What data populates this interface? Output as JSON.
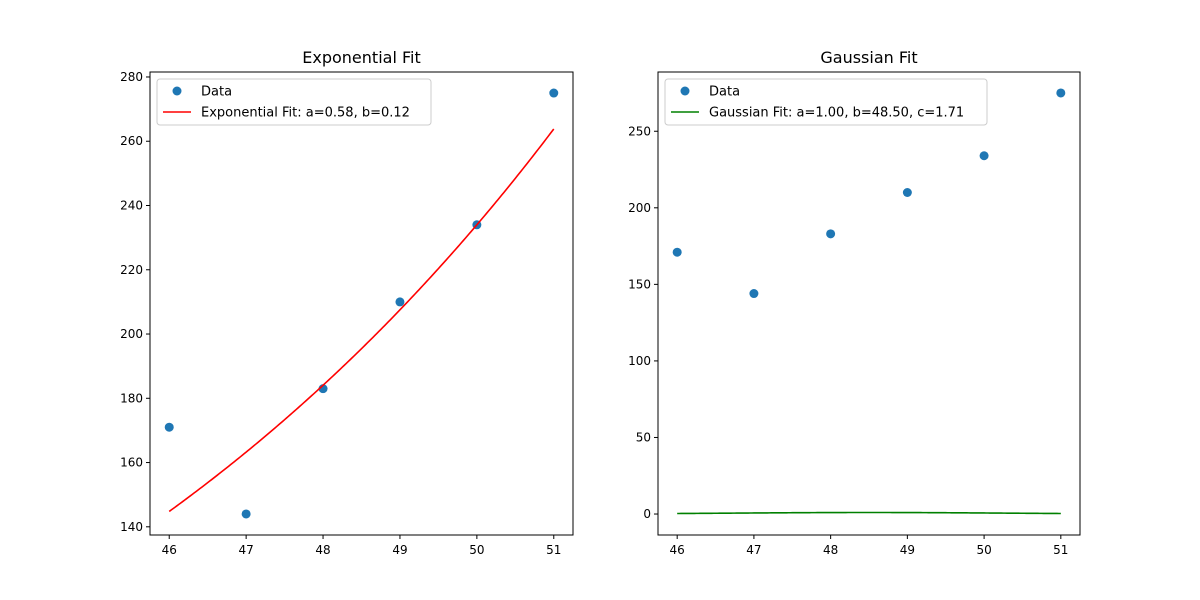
{
  "chart_data": [
    {
      "type": "scatter",
      "title": "Exponential Fit",
      "xlabel": "",
      "ylabel": "",
      "xlim": [
        45.75,
        51.25
      ],
      "ylim": [
        137.45,
        281.55
      ],
      "xticks": [
        46,
        47,
        48,
        49,
        50,
        51
      ],
      "yticks": [
        140,
        160,
        180,
        200,
        220,
        240,
        260,
        280
      ],
      "grid": false,
      "legend_position": "top-left",
      "series": [
        {
          "name": "Data",
          "kind": "scatter",
          "color": "#1f77b4",
          "x": [
            46,
            47,
            48,
            49,
            50,
            51
          ],
          "y": [
            171,
            144,
            183,
            210,
            234,
            275
          ]
        },
        {
          "name": "Exponential Fit: a=0.58, b=0.12",
          "kind": "line",
          "color": "#ff0000",
          "model": "exponential",
          "a": 0.58,
          "b": 0.12,
          "x_range": [
            46,
            51
          ]
        }
      ]
    },
    {
      "type": "scatter",
      "title": "Gaussian Fit",
      "xlabel": "",
      "ylabel": "",
      "xlim": [
        45.75,
        51.25
      ],
      "ylim": [
        -13.7,
        288.7
      ],
      "xticks": [
        46,
        47,
        48,
        49,
        50,
        51
      ],
      "yticks": [
        0,
        50,
        100,
        150,
        200,
        250
      ],
      "grid": false,
      "legend_position": "top-left",
      "series": [
        {
          "name": "Data",
          "kind": "scatter",
          "color": "#1f77b4",
          "x": [
            46,
            47,
            48,
            49,
            50,
            51
          ],
          "y": [
            171,
            144,
            183,
            210,
            234,
            275
          ]
        },
        {
          "name": "Gaussian Fit: a=1.00, b=48.50, c=1.71",
          "kind": "line",
          "color": "#008000",
          "model": "gaussian",
          "a": 1.0,
          "b": 48.5,
          "c": 1.71,
          "x_range": [
            46,
            51
          ]
        }
      ]
    }
  ]
}
